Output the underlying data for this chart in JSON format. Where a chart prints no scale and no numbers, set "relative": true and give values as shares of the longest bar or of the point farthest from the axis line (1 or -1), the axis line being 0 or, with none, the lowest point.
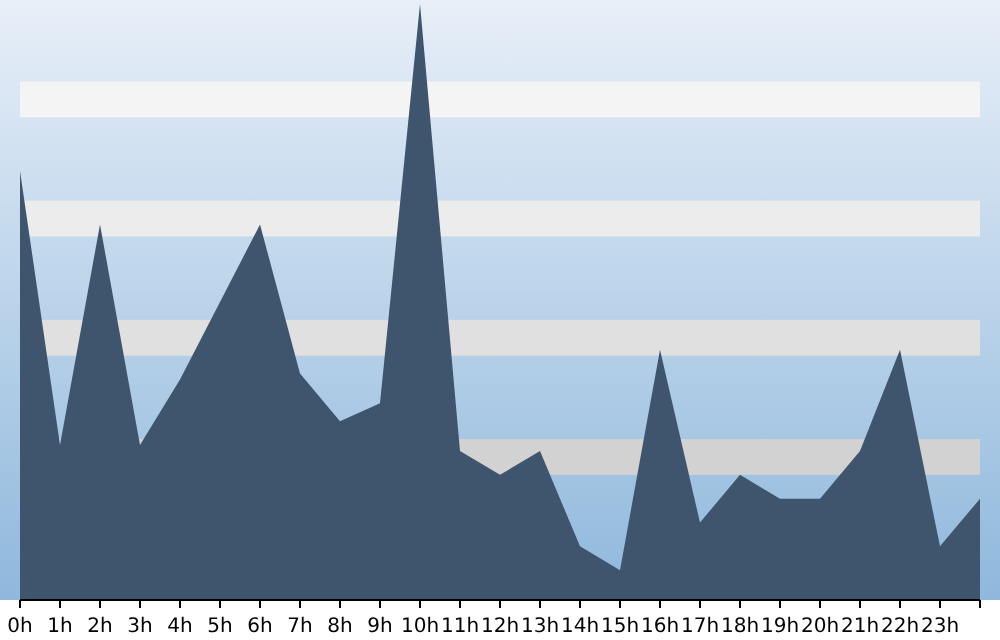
{
  "chart_data": {
    "type": "area",
    "relative": true,
    "color": "#3f556e",
    "categories": [
      "0h",
      "1h",
      "2h",
      "3h",
      "4h",
      "5h",
      "6h",
      "7h",
      "8h",
      "9h",
      "10h",
      "11h",
      "12h",
      "13h",
      "14h",
      "15h",
      "16h",
      "17h",
      "18h",
      "19h",
      "20h",
      "21h",
      "22h",
      "23h",
      null
    ],
    "values": [
      0.72,
      0.26,
      0.63,
      0.26,
      0.37,
      0.5,
      0.63,
      0.38,
      0.3,
      0.33,
      1,
      0.25,
      0.21,
      0.25,
      0.09,
      0.05,
      0.42,
      0.13,
      0.21,
      0.17,
      0.17,
      0.25,
      0.42,
      0.09,
      0.17
    ],
    "bands": [
      {
        "axis": "y",
        "from": 0.81,
        "to": 0.87,
        "color": "#f4f4f4"
      },
      {
        "axis": "y",
        "from": 0.61,
        "to": 0.67,
        "color": "#ececec"
      },
      {
        "axis": "y",
        "from": 0.41,
        "to": 0.47,
        "color": "#e0e0e0"
      },
      {
        "axis": "y",
        "from": 0.21,
        "to": 0.27,
        "color": "#d2d2d2"
      }
    ]
  }
}
